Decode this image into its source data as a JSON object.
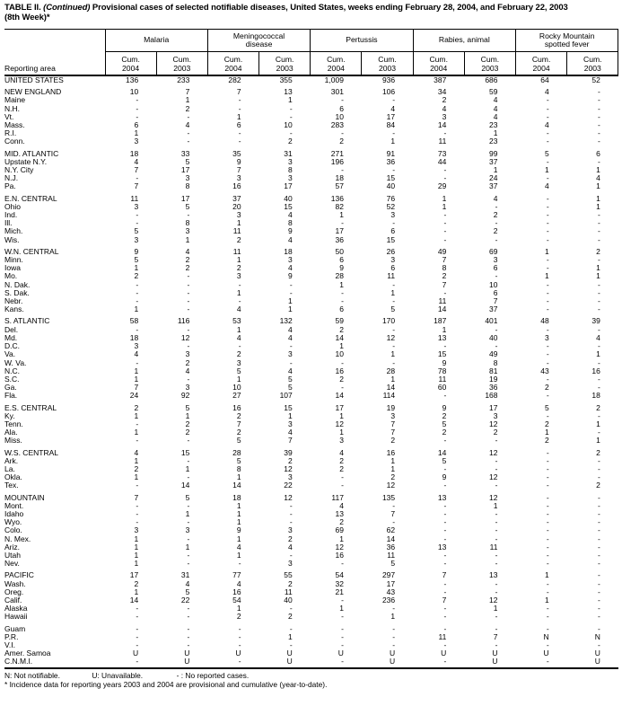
{
  "title": {
    "part1": "TABLE II. ",
    "part2": "(Continued)",
    "part3": " Provisional cases of selected notifiable diseases, United States, weeks ending February 28, 2004, and February 22, 2003",
    "part4": "(8th Week)*"
  },
  "colors": {
    "text": "#000000",
    "background": "#ffffff"
  },
  "table": {
    "reporting_area_label": "Reporting area",
    "cum_label": "Cum.",
    "years": [
      "2004",
      "2003"
    ],
    "groups": [
      {
        "label": "Malaria"
      },
      {
        "label": "Meningococcal disease"
      },
      {
        "label": "Pertussis"
      },
      {
        "label": "Rabies, animal"
      },
      {
        "label": "Rocky Mountain spotted fever"
      }
    ],
    "rows": [
      {
        "area": "UNITED STATES",
        "values": [
          "136",
          "233",
          "282",
          "355",
          "1,009",
          "936",
          "387",
          "686",
          "64",
          "52"
        ]
      },
      {
        "gap": true
      },
      {
        "area": "NEW ENGLAND",
        "values": [
          "10",
          "7",
          "7",
          "13",
          "301",
          "106",
          "34",
          "59",
          "4",
          "-"
        ]
      },
      {
        "area": "Maine",
        "values": [
          "-",
          "1",
          "-",
          "1",
          "-",
          "-",
          "2",
          "4",
          "-",
          "-"
        ]
      },
      {
        "area": "N.H.",
        "values": [
          "-",
          "2",
          "-",
          "-",
          "6",
          "4",
          "4",
          "4",
          "-",
          "-"
        ]
      },
      {
        "area": "Vt.",
        "values": [
          "-",
          "-",
          "1",
          "-",
          "10",
          "17",
          "3",
          "4",
          "-",
          "-"
        ]
      },
      {
        "area": "Mass.",
        "values": [
          "6",
          "4",
          "6",
          "10",
          "283",
          "84",
          "14",
          "23",
          "4",
          "-"
        ]
      },
      {
        "area": "R.I.",
        "values": [
          "1",
          "-",
          "-",
          "-",
          "-",
          "-",
          "-",
          "1",
          "-",
          "-"
        ]
      },
      {
        "area": "Conn.",
        "values": [
          "3",
          "-",
          "-",
          "2",
          "2",
          "1",
          "11",
          "23",
          "-",
          "-"
        ]
      },
      {
        "gap": true
      },
      {
        "area": "MID. ATLANTIC",
        "values": [
          "18",
          "33",
          "35",
          "31",
          "271",
          "91",
          "73",
          "99",
          "5",
          "6"
        ]
      },
      {
        "area": "Upstate N.Y.",
        "values": [
          "4",
          "5",
          "9",
          "3",
          "196",
          "36",
          "44",
          "37",
          "-",
          "-"
        ]
      },
      {
        "area": "N.Y. City",
        "values": [
          "7",
          "17",
          "7",
          "8",
          "-",
          "-",
          "-",
          "1",
          "1",
          "1"
        ]
      },
      {
        "area": "N.J.",
        "values": [
          "-",
          "3",
          "3",
          "3",
          "18",
          "15",
          "-",
          "24",
          "-",
          "4"
        ]
      },
      {
        "area": "Pa.",
        "values": [
          "7",
          "8",
          "16",
          "17",
          "57",
          "40",
          "29",
          "37",
          "4",
          "1"
        ]
      },
      {
        "gap": true
      },
      {
        "area": "E.N. CENTRAL",
        "values": [
          "11",
          "17",
          "37",
          "40",
          "136",
          "76",
          "1",
          "4",
          "-",
          "1"
        ]
      },
      {
        "area": "Ohio",
        "values": [
          "3",
          "5",
          "20",
          "15",
          "82",
          "52",
          "1",
          "-",
          "-",
          "1"
        ]
      },
      {
        "area": "Ind.",
        "values": [
          "-",
          "-",
          "3",
          "4",
          "1",
          "3",
          "-",
          "2",
          "-",
          "-"
        ]
      },
      {
        "area": "Ill.",
        "values": [
          "-",
          "8",
          "1",
          "8",
          "-",
          "-",
          "-",
          "-",
          "-",
          "-"
        ]
      },
      {
        "area": "Mich.",
        "values": [
          "5",
          "3",
          "11",
          "9",
          "17",
          "6",
          "-",
          "2",
          "-",
          "-"
        ]
      },
      {
        "area": "Wis.",
        "values": [
          "3",
          "1",
          "2",
          "4",
          "36",
          "15",
          "-",
          "-",
          "-",
          "-"
        ]
      },
      {
        "gap": true
      },
      {
        "area": "W.N. CENTRAL",
        "values": [
          "9",
          "4",
          "11",
          "18",
          "50",
          "26",
          "49",
          "69",
          "1",
          "2"
        ]
      },
      {
        "area": "Minn.",
        "values": [
          "5",
          "2",
          "1",
          "3",
          "6",
          "3",
          "7",
          "3",
          "-",
          "-"
        ]
      },
      {
        "area": "Iowa",
        "values": [
          "1",
          "2",
          "2",
          "4",
          "9",
          "6",
          "8",
          "6",
          "-",
          "1"
        ]
      },
      {
        "area": "Mo.",
        "values": [
          "2",
          "-",
          "3",
          "9",
          "28",
          "11",
          "2",
          "-",
          "1",
          "1"
        ]
      },
      {
        "area": "N. Dak.",
        "values": [
          "-",
          "-",
          "-",
          "-",
          "1",
          "-",
          "7",
          "10",
          "-",
          "-"
        ]
      },
      {
        "area": "S. Dak.",
        "values": [
          "-",
          "-",
          "1",
          "-",
          "-",
          "1",
          "-",
          "6",
          "-",
          "-"
        ]
      },
      {
        "area": "Nebr.",
        "values": [
          "-",
          "-",
          "-",
          "1",
          "-",
          "-",
          "11",
          "7",
          "-",
          "-"
        ]
      },
      {
        "area": "Kans.",
        "values": [
          "1",
          "-",
          "4",
          "1",
          "6",
          "5",
          "14",
          "37",
          "-",
          "-"
        ]
      },
      {
        "gap": true
      },
      {
        "area": "S. ATLANTIC",
        "values": [
          "58",
          "116",
          "53",
          "132",
          "59",
          "170",
          "187",
          "401",
          "48",
          "39"
        ]
      },
      {
        "area": "Del.",
        "values": [
          "-",
          "-",
          "1",
          "4",
          "2",
          "-",
          "1",
          "-",
          "-",
          "-"
        ]
      },
      {
        "area": "Md.",
        "values": [
          "18",
          "12",
          "4",
          "4",
          "14",
          "12",
          "13",
          "40",
          "3",
          "4"
        ]
      },
      {
        "area": "D.C.",
        "values": [
          "3",
          "-",
          "-",
          "-",
          "1",
          "-",
          "-",
          "-",
          "-",
          "-"
        ]
      },
      {
        "area": "Va.",
        "values": [
          "4",
          "3",
          "2",
          "3",
          "10",
          "1",
          "15",
          "49",
          "-",
          "1"
        ]
      },
      {
        "area": "W. Va.",
        "values": [
          "-",
          "2",
          "3",
          "-",
          "-",
          "-",
          "9",
          "8",
          "-",
          "-"
        ]
      },
      {
        "area": "N.C.",
        "values": [
          "1",
          "4",
          "5",
          "4",
          "16",
          "28",
          "78",
          "81",
          "43",
          "16"
        ]
      },
      {
        "area": "S.C.",
        "values": [
          "1",
          "-",
          "1",
          "5",
          "2",
          "1",
          "11",
          "19",
          "-",
          "-"
        ]
      },
      {
        "area": "Ga.",
        "values": [
          "7",
          "3",
          "10",
          "5",
          "-",
          "14",
          "60",
          "36",
          "2",
          "-"
        ]
      },
      {
        "area": "Fla.",
        "values": [
          "24",
          "92",
          "27",
          "107",
          "14",
          "114",
          "-",
          "168",
          "-",
          "18"
        ]
      },
      {
        "gap": true
      },
      {
        "area": "E.S. CENTRAL",
        "values": [
          "2",
          "5",
          "16",
          "15",
          "17",
          "19",
          "9",
          "17",
          "5",
          "2"
        ]
      },
      {
        "area": "Ky.",
        "values": [
          "1",
          "1",
          "2",
          "1",
          "1",
          "3",
          "2",
          "3",
          "-",
          "-"
        ]
      },
      {
        "area": "Tenn.",
        "values": [
          "-",
          "2",
          "7",
          "3",
          "12",
          "7",
          "5",
          "12",
          "2",
          "1"
        ]
      },
      {
        "area": "Ala.",
        "values": [
          "1",
          "2",
          "2",
          "4",
          "1",
          "7",
          "2",
          "2",
          "1",
          "-"
        ]
      },
      {
        "area": "Miss.",
        "values": [
          "-",
          "-",
          "5",
          "7",
          "3",
          "2",
          "-",
          "-",
          "2",
          "1"
        ]
      },
      {
        "gap": true
      },
      {
        "area": "W.S. CENTRAL",
        "values": [
          "4",
          "15",
          "28",
          "39",
          "4",
          "16",
          "14",
          "12",
          "-",
          "2"
        ]
      },
      {
        "area": "Ark.",
        "values": [
          "1",
          "-",
          "5",
          "2",
          "2",
          "1",
          "5",
          "-",
          "-",
          "-"
        ]
      },
      {
        "area": "La.",
        "values": [
          "2",
          "1",
          "8",
          "12",
          "2",
          "1",
          "-",
          "-",
          "-",
          "-"
        ]
      },
      {
        "area": "Okla.",
        "values": [
          "1",
          "-",
          "1",
          "3",
          "-",
          "2",
          "9",
          "12",
          "-",
          "-"
        ]
      },
      {
        "area": "Tex.",
        "values": [
          "-",
          "14",
          "14",
          "22",
          "-",
          "12",
          "-",
          "-",
          "-",
          "2"
        ]
      },
      {
        "gap": true
      },
      {
        "area": "MOUNTAIN",
        "values": [
          "7",
          "5",
          "18",
          "12",
          "117",
          "135",
          "13",
          "12",
          "-",
          "-"
        ]
      },
      {
        "area": "Mont.",
        "values": [
          "-",
          "-",
          "1",
          "-",
          "4",
          "-",
          "-",
          "1",
          "-",
          "-"
        ]
      },
      {
        "area": "Idaho",
        "values": [
          "-",
          "1",
          "1",
          "-",
          "13",
          "7",
          "-",
          "-",
          "-",
          "-"
        ]
      },
      {
        "area": "Wyo.",
        "values": [
          "-",
          "-",
          "1",
          "-",
          "2",
          "-",
          "-",
          "-",
          "-",
          "-"
        ]
      },
      {
        "area": "Colo.",
        "values": [
          "3",
          "3",
          "9",
          "3",
          "69",
          "62",
          "-",
          "-",
          "-",
          "-"
        ]
      },
      {
        "area": "N. Mex.",
        "values": [
          "1",
          "-",
          "1",
          "2",
          "1",
          "14",
          "-",
          "-",
          "-",
          "-"
        ]
      },
      {
        "area": "Ariz.",
        "values": [
          "1",
          "1",
          "4",
          "4",
          "12",
          "36",
          "13",
          "11",
          "-",
          "-"
        ]
      },
      {
        "area": "Utah",
        "values": [
          "1",
          "-",
          "1",
          "-",
          "16",
          "11",
          "-",
          "-",
          "-",
          "-"
        ]
      },
      {
        "area": "Nev.",
        "values": [
          "1",
          "-",
          "-",
          "3",
          "-",
          "5",
          "-",
          "-",
          "-",
          "-"
        ]
      },
      {
        "gap": true
      },
      {
        "area": "PACIFIC",
        "values": [
          "17",
          "31",
          "77",
          "55",
          "54",
          "297",
          "7",
          "13",
          "1",
          "-"
        ]
      },
      {
        "area": "Wash.",
        "values": [
          "2",
          "4",
          "4",
          "2",
          "32",
          "17",
          "-",
          "-",
          "-",
          "-"
        ]
      },
      {
        "area": "Oreg.",
        "values": [
          "1",
          "5",
          "16",
          "11",
          "21",
          "43",
          "-",
          "-",
          "-",
          "-"
        ]
      },
      {
        "area": "Calif.",
        "values": [
          "14",
          "22",
          "54",
          "40",
          "-",
          "236",
          "7",
          "12",
          "1",
          "-"
        ]
      },
      {
        "area": "Alaska",
        "values": [
          "-",
          "-",
          "1",
          "-",
          "1",
          "-",
          "-",
          "1",
          "-",
          "-"
        ]
      },
      {
        "area": "Hawaii",
        "values": [
          "-",
          "-",
          "2",
          "2",
          "-",
          "1",
          "-",
          "-",
          "-",
          "-"
        ]
      },
      {
        "gap": true
      },
      {
        "area": "Guam",
        "values": [
          "-",
          "-",
          "-",
          "-",
          "-",
          "-",
          "-",
          "-",
          "-",
          "-"
        ]
      },
      {
        "area": "P.R.",
        "values": [
          "-",
          "-",
          "-",
          "1",
          "-",
          "-",
          "11",
          "7",
          "N",
          "N"
        ]
      },
      {
        "area": "V.I.",
        "values": [
          "-",
          "-",
          "-",
          "-",
          "-",
          "-",
          "-",
          "-",
          "-",
          "-"
        ]
      },
      {
        "area": "Amer. Samoa",
        "values": [
          "U",
          "U",
          "U",
          "U",
          "U",
          "U",
          "U",
          "U",
          "U",
          "U"
        ]
      },
      {
        "area": "C.N.M.I.",
        "values": [
          "-",
          "U",
          "-",
          "U",
          "-",
          "U",
          "-",
          "U",
          "-",
          "U"
        ]
      }
    ]
  },
  "footnotes": {
    "n": "N: Not notifiable.",
    "u": "U: Unavailable.",
    "dash": "- : No reported cases.",
    "asterisk": "* Incidence data for reporting years 2003 and 2004 are provisional and cumulative (year-to-date)."
  }
}
